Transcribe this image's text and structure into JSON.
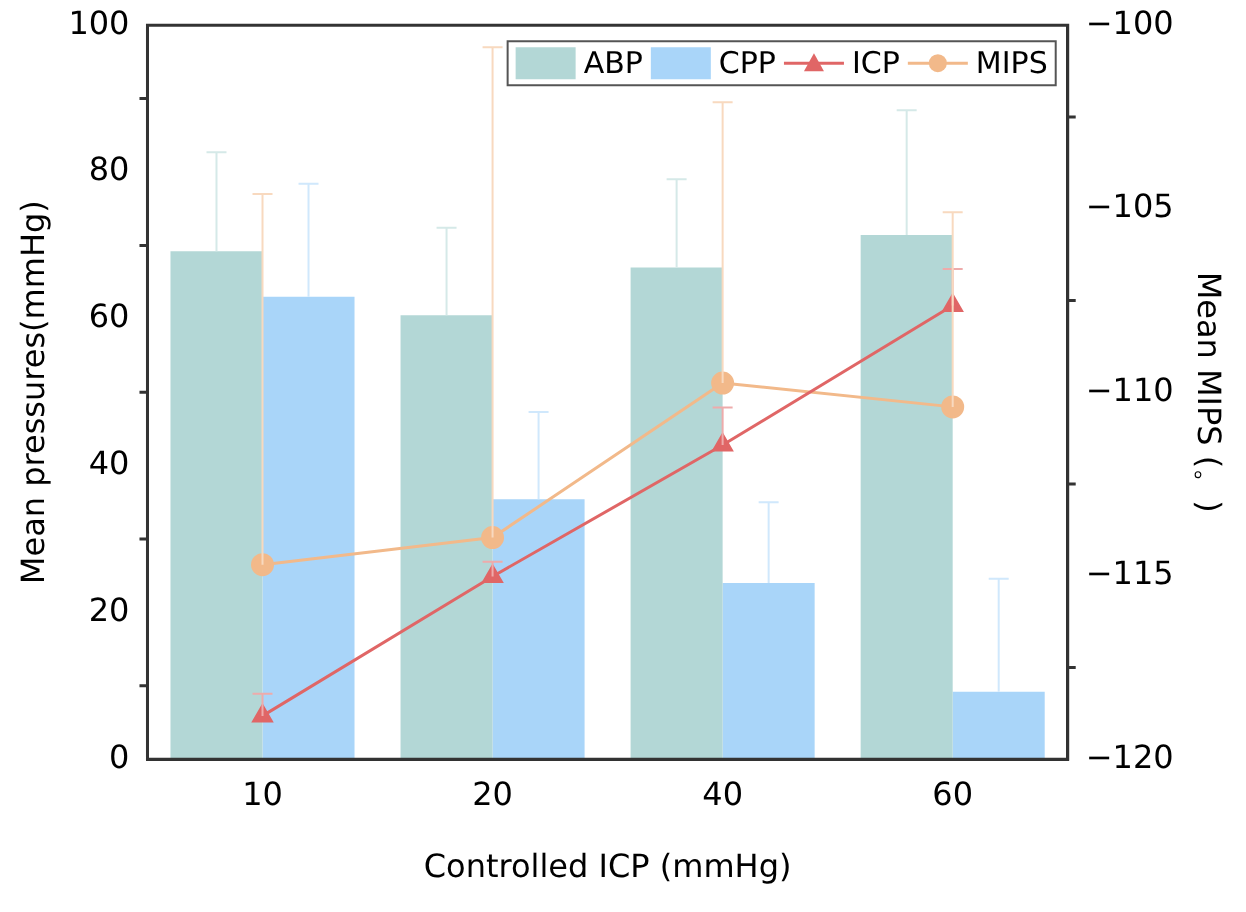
{
  "chart_data": {
    "type": "bar",
    "xlabel": "Controlled ICP (mmHg)",
    "ylabel": "Mean pressures(mmHg)",
    "y2label": "Mean MIPS (。)",
    "categories": [
      "10",
      "20",
      "40",
      "60"
    ],
    "series": [
      {
        "name": "ABP",
        "color": "#b3d7d6",
        "values": [
          69.2,
          60.5,
          67,
          71.4
        ],
        "errors": [
          [
            69.2,
            82.7
          ],
          [
            60.5,
            72.4
          ],
          [
            67,
            79
          ],
          [
            71.4,
            88.4
          ]
        ]
      },
      {
        "name": "CPP",
        "color": "#a9d5f9",
        "values": [
          63,
          35.4,
          24,
          9.2
        ],
        "errors": [
          [
            63,
            78.4
          ],
          [
            35.4,
            47.3
          ],
          [
            24,
            35
          ],
          [
            9.2,
            24.6
          ]
        ]
      },
      {
        "name": "ICP",
        "type": "line",
        "color": "#e06666",
        "marker": "triangle",
        "values": [
          5.9,
          24.9,
          42.8,
          61.8
        ],
        "errors": [
          [
            5.9,
            8.9
          ],
          [
            24.9,
            26.9
          ],
          [
            42.8,
            47.9
          ],
          [
            61.8,
            66.8
          ]
        ]
      },
      {
        "name": "MIPS",
        "type": "line",
        "axis": "y2",
        "color": "#f2b98a",
        "marker": "circle",
        "values": [
          -114.7,
          -113.96,
          -109.75,
          -110.4
        ],
        "errors": [
          [
            -114.7,
            -104.6
          ],
          [
            -113.96,
            -100.6
          ],
          [
            -109.75,
            -102.1
          ],
          [
            -110.4,
            -105.1
          ]
        ]
      }
    ],
    "ylim": [
      0,
      100
    ],
    "yticks": [
      0,
      {
        "value": 10,
        "label": null
      },
      20,
      {
        "value": 30,
        "label": null
      },
      40,
      {
        "value": 50,
        "label": null
      },
      60,
      {
        "value": 70,
        "label": null
      },
      80,
      {
        "value": 90,
        "label": null
      },
      100
    ],
    "y2lim": [
      -120,
      -100
    ],
    "y2ticks": [
      -120,
      {
        "value": -117.5,
        "label": null
      },
      -115,
      {
        "value": -112.5,
        "label": null
      },
      -110,
      {
        "value": -107.5,
        "label": null
      },
      -105,
      {
        "value": -102.5,
        "label": null
      },
      -100
    ],
    "legend": "top right",
    "grid": false
  }
}
